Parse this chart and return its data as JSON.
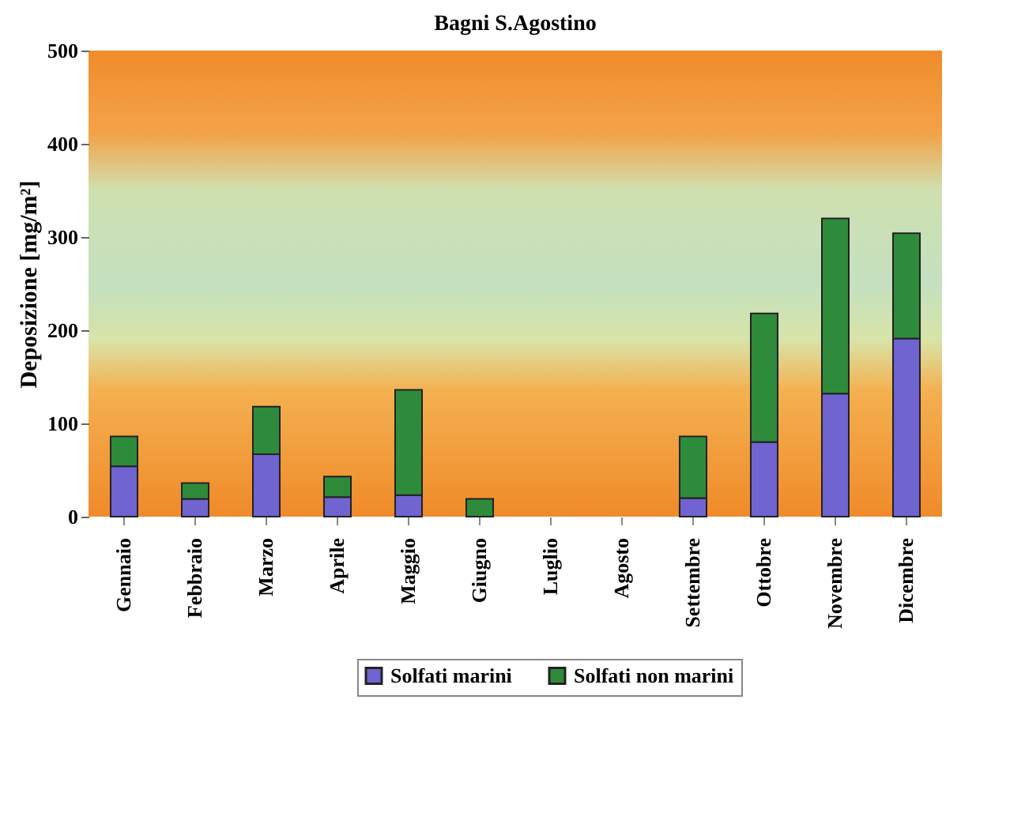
{
  "chart_data": {
    "type": "bar",
    "title": "Bagni S.Agostino",
    "ylabel": "Deposizione [mg/m²]",
    "categories": [
      "Gennaio",
      "Febbraio",
      "Marzo",
      "Aprile",
      "Maggio",
      "Giugno",
      "Luglio",
      "Agosto",
      "Settembre",
      "Ottobre",
      "Novembre",
      "Dicembre"
    ],
    "stacked": true,
    "series": [
      {
        "name": "Solfati marini",
        "color": "#7064d0",
        "values": [
          54,
          19,
          67,
          21,
          23,
          0,
          null,
          null,
          20,
          80,
          132,
          191
        ]
      },
      {
        "name": "Solfati non marini",
        "color": "#2e8b3c",
        "values": [
          32,
          17,
          51,
          22,
          113,
          19,
          null,
          null,
          66,
          138,
          188,
          113
        ]
      }
    ],
    "ylim": [
      0,
      500
    ],
    "yticks": [
      0,
      100,
      200,
      300,
      400,
      500
    ],
    "grid": false,
    "legend": "bottom"
  }
}
